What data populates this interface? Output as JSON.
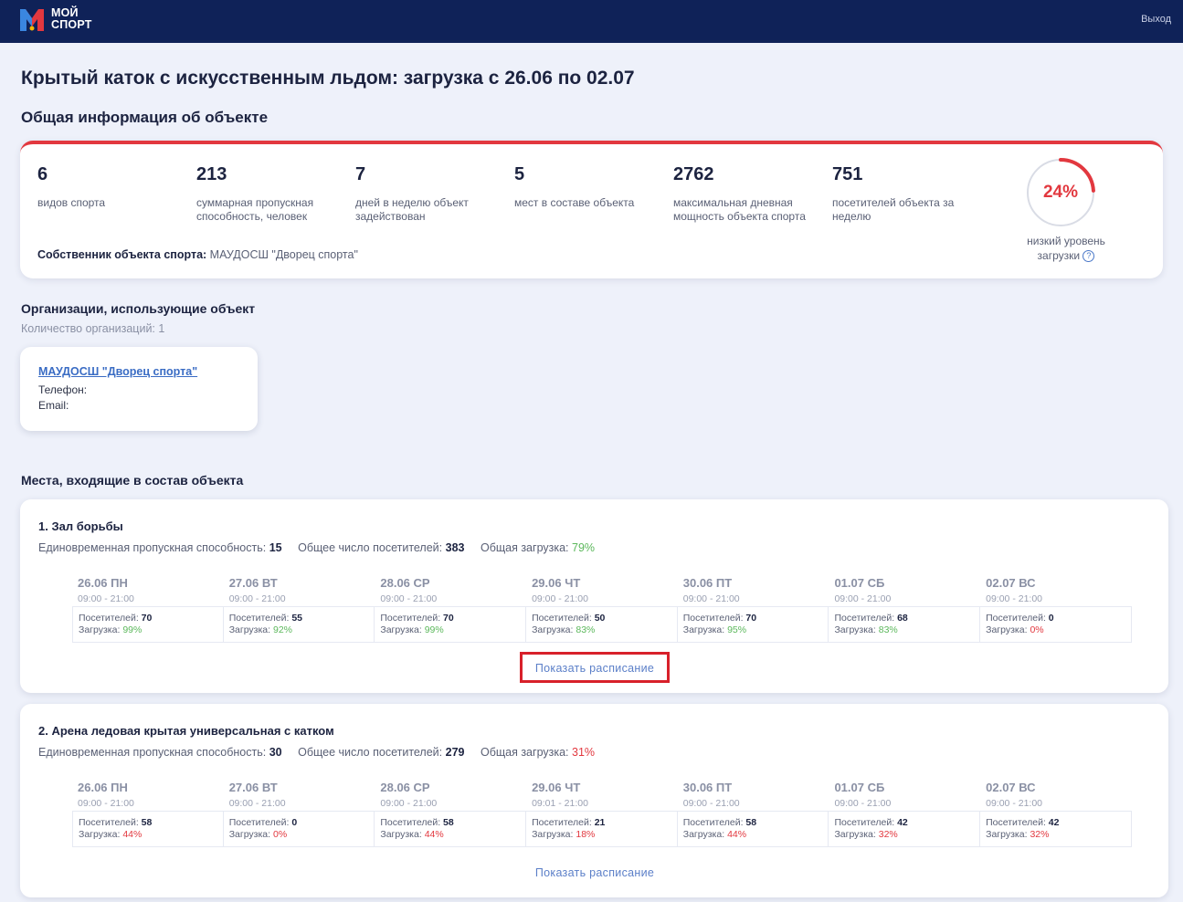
{
  "header": {
    "logo_line1": "МОЙ",
    "logo_line2": "СПОРТ",
    "logout_label": "Выход"
  },
  "page": {
    "title": "Крытый каток с искусственным льдом: загрузка с 26.06 по 02.07",
    "info_section_title": "Общая информация об объекте"
  },
  "stats": [
    {
      "value": "6",
      "label": "видов спорта"
    },
    {
      "value": "213",
      "label": "суммарная пропускная способность, человек"
    },
    {
      "value": "7",
      "label": "дней в неделю объект задействован"
    },
    {
      "value": "5",
      "label": "мест в составе объекта"
    },
    {
      "value": "2762",
      "label": "максимальная дневная мощность объекта спорта"
    },
    {
      "value": "751",
      "label": "посетителей объекта за неделю"
    }
  ],
  "owner": {
    "label": "Собственник объекта спорта:",
    "value": "МАУДОСШ \"Дворец спорта\""
  },
  "load_gauge": {
    "percent_text": "24%",
    "fraction": 0.24,
    "label": "низкий уровень загрузки",
    "accent_color": "#e2383f"
  },
  "organizations": {
    "title": "Организации, использующие объект",
    "count_text": "Количество организаций: 1",
    "items": [
      {
        "name": "МАУДОСШ \"Дворец спорта\"",
        "phone_label": "Телефон:",
        "email_label": "Email:"
      }
    ]
  },
  "places": {
    "title": "Места, входящие в состав объекта",
    "capacity_label": "Единовременная пропускная способность:",
    "visitors_label": "Общее число посетителей:",
    "load_label": "Общая загрузка:",
    "day_visitors_label": "Посетителей:",
    "day_load_label": "Загрузка:",
    "show_schedule_label": "Показать расписание",
    "items": [
      {
        "title": "1. Зал борьбы",
        "capacity": "15",
        "visitors": "383",
        "load": "79%",
        "days": [
          {
            "name": "26.06 ПН",
            "time": "09:00 - 21:00",
            "visitors": "70",
            "load": "99%"
          },
          {
            "name": "27.06 ВТ",
            "time": "09:00 - 21:00",
            "visitors": "55",
            "load": "92%"
          },
          {
            "name": "28.06 СР",
            "time": "09:00 - 21:00",
            "visitors": "70",
            "load": "99%"
          },
          {
            "name": "29.06 ЧТ",
            "time": "09:00 - 21:00",
            "visitors": "50",
            "load": "83%"
          },
          {
            "name": "30.06 ПТ",
            "time": "09:00 - 21:00",
            "visitors": "70",
            "load": "95%"
          },
          {
            "name": "01.07 СБ",
            "time": "09:00 - 21:00",
            "visitors": "68",
            "load": "83%"
          },
          {
            "name": "02.07 ВС",
            "time": "09:00 - 21:00",
            "visitors": "0",
            "load": "0%"
          }
        ]
      },
      {
        "title": "2. Арена ледовая крытая универсальная с катком",
        "capacity": "30",
        "visitors": "279",
        "load": "31%",
        "days": [
          {
            "name": "26.06 ПН",
            "time": "09:00 - 21:00",
            "visitors": "58",
            "load": "44%"
          },
          {
            "name": "27.06 ВТ",
            "time": "09:00 - 21:00",
            "visitors": "0",
            "load": "0%"
          },
          {
            "name": "28.06 СР",
            "time": "09:00 - 21:00",
            "visitors": "58",
            "load": "44%"
          },
          {
            "name": "29.06 ЧТ",
            "time": "09:01 - 21:00",
            "visitors": "21",
            "load": "18%"
          },
          {
            "name": "30.06 ПТ",
            "time": "09:00 - 21:00",
            "visitors": "58",
            "load": "44%"
          },
          {
            "name": "01.07 СБ",
            "time": "09:00 - 21:00",
            "visitors": "42",
            "load": "32%"
          },
          {
            "name": "02.07 ВС",
            "time": "09:00 - 21:00",
            "visitors": "42",
            "load": "32%"
          }
        ]
      }
    ]
  },
  "colors": {
    "header_bg": "#0f2258",
    "good_load": "#5cb85c",
    "low_load": "#e2383f",
    "link": "#3a6cc4",
    "highlight_box": "#d8202a"
  }
}
